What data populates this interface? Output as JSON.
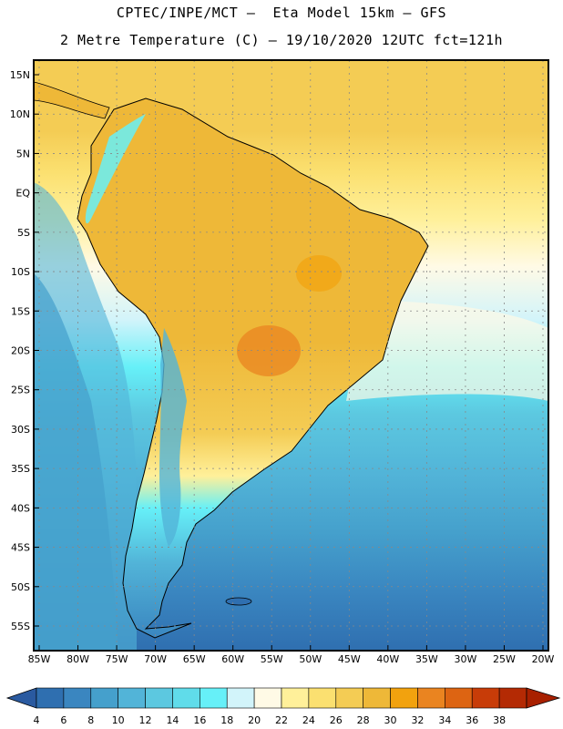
{
  "title": {
    "line1": "CPTEC/INPE/MCT –  Eta Model 15km – GFS",
    "line2": "2 Metre Temperature (C) – 19/10/2020 12UTC fct=121h"
  },
  "lat_labels": [
    "15N",
    "10N",
    "5N",
    "EQ",
    "5S",
    "10S",
    "15S",
    "20S",
    "25S",
    "30S",
    "35S",
    "40S",
    "45S",
    "50S",
    "55S"
  ],
  "lon_labels": [
    "85W",
    "80W",
    "75W",
    "70W",
    "65W",
    "60W",
    "55W",
    "50W",
    "45W",
    "40W",
    "35W",
    "30W",
    "25W",
    "20W"
  ],
  "colorbar": {
    "ticks": [
      "4",
      "6",
      "8",
      "10",
      "12",
      "14",
      "16",
      "18",
      "20",
      "22",
      "24",
      "26",
      "28",
      "30",
      "32",
      "34",
      "36",
      "38"
    ],
    "colors": [
      "#2f6fb0",
      "#3a86c0",
      "#45a0cc",
      "#52b4d8",
      "#5cc8e0",
      "#60dcea",
      "#66f0f8",
      "#d2f4fa",
      "#fffae6",
      "#fff09a",
      "#fbe070",
      "#f4cc54",
      "#eeb838",
      "#f2a20e",
      "#ea8420",
      "#dd6412",
      "#c83c08",
      "#b42a04"
    ],
    "under_color": "#2a5aa0",
    "over_color": "#a82000"
  }
}
